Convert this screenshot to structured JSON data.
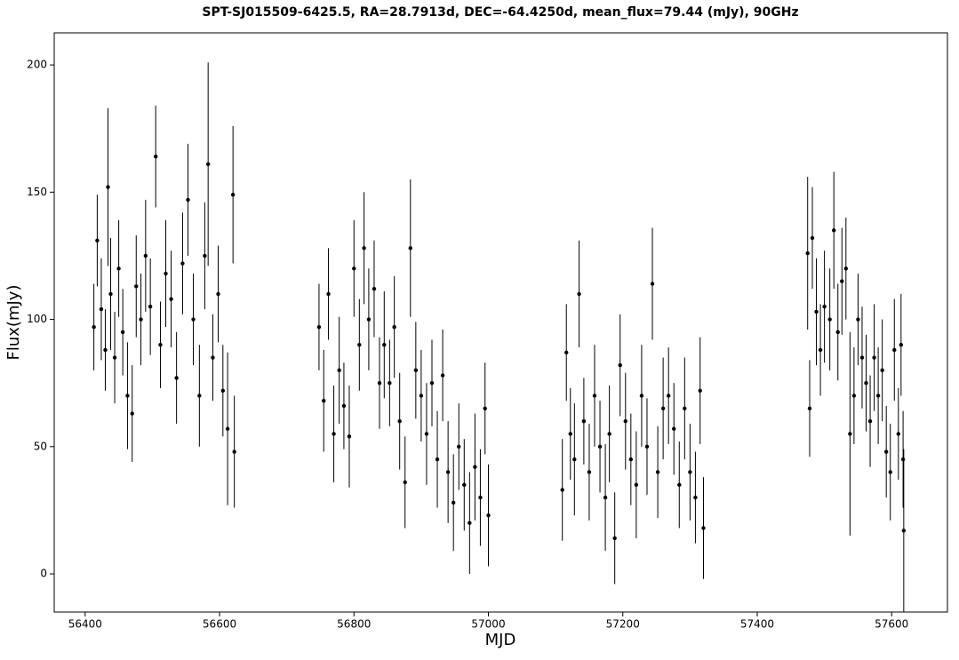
{
  "chart_data": {
    "type": "errorbar",
    "title": "SPT-SJ015509-6425.5, RA=28.7913d, DEC=-64.4250d, mean_flux=79.44 (mJy), 90GHz",
    "x_label": "MJD",
    "y_label": "Flux(mJy)",
    "xlim": [
      56354,
      57683
    ],
    "ylim": [
      -15,
      212.6
    ],
    "xticks": [
      56400,
      56600,
      56800,
      57000,
      57200,
      57400,
      57600
    ],
    "yticks": [
      0,
      50,
      100,
      150,
      200
    ],
    "color": "#000000",
    "x": [
      56413,
      56418,
      56424,
      56430,
      56434,
      56438,
      56444,
      56450,
      56456,
      56463,
      56470,
      56476,
      56483,
      56490,
      56497,
      56505,
      56512,
      56520,
      56528,
      56536,
      56545,
      56553,
      56561,
      56570,
      56578,
      56583,
      56590,
      56598,
      56605,
      56612,
      56620,
      56622,
      56748,
      56755,
      56762,
      56770,
      56778,
      56785,
      56793,
      56800,
      56808,
      56815,
      56822,
      56830,
      56838,
      56845,
      56853,
      56860,
      56868,
      56876,
      56884,
      56892,
      56900,
      56908,
      56916,
      56924,
      56932,
      56940,
      56948,
      56956,
      56964,
      56972,
      56980,
      56988,
      56995,
      57000,
      57110,
      57116,
      57122,
      57128,
      57135,
      57142,
      57150,
      57158,
      57166,
      57174,
      57180,
      57188,
      57196,
      57204,
      57212,
      57220,
      57228,
      57236,
      57244,
      57252,
      57260,
      57268,
      57276,
      57284,
      57292,
      57300,
      57308,
      57315,
      57320,
      57475,
      57478,
      57482,
      57488,
      57494,
      57500,
      57508,
      57514,
      57520,
      57526,
      57532,
      57538,
      57544,
      57550,
      57556,
      57562,
      57568,
      57574,
      57580,
      57586,
      57592,
      57598,
      57604,
      57610,
      57614,
      57617,
      57618
    ],
    "values": [
      97,
      131,
      104,
      88,
      152,
      110,
      85,
      120,
      95,
      70,
      63,
      113,
      100,
      125,
      105,
      164,
      90,
      118,
      108,
      77,
      122,
      147,
      100,
      70,
      125,
      161,
      85,
      110,
      72,
      57,
      149,
      48,
      97,
      68,
      110,
      55,
      80,
      66,
      54,
      120,
      90,
      128,
      100,
      112,
      75,
      90,
      75,
      97,
      60,
      36,
      128,
      80,
      70,
      55,
      75,
      45,
      78,
      40,
      28,
      50,
      35,
      20,
      42,
      30,
      65,
      23,
      33,
      87,
      55,
      45,
      110,
      60,
      40,
      70,
      50,
      30,
      55,
      14,
      82,
      60,
      45,
      35,
      70,
      50,
      114,
      40,
      65,
      70,
      57,
      35,
      65,
      40,
      30,
      72,
      18,
      126,
      65,
      132,
      103,
      88,
      105,
      100,
      135,
      95,
      115,
      120,
      55,
      70,
      100,
      85,
      75,
      60,
      85,
      70,
      80,
      48,
      40,
      88,
      55,
      90,
      45,
      17
    ],
    "errors": [
      17,
      18,
      20,
      16,
      31,
      22,
      18,
      19,
      17,
      21,
      19,
      20,
      18,
      22,
      19,
      20,
      17,
      21,
      19,
      18,
      20,
      22,
      18,
      20,
      21,
      40,
      17,
      19,
      18,
      30,
      27,
      22,
      17,
      20,
      18,
      19,
      21,
      17,
      20,
      19,
      18,
      22,
      20,
      19,
      18,
      21,
      17,
      20,
      19,
      18,
      27,
      19,
      18,
      20,
      17,
      19,
      18,
      20,
      19,
      17,
      18,
      20,
      21,
      19,
      18,
      20,
      20,
      19,
      18,
      22,
      21,
      17,
      19,
      20,
      18,
      21,
      19,
      18,
      20,
      19,
      18,
      21,
      20,
      19,
      22,
      18,
      20,
      19,
      18,
      17,
      20,
      19,
      18,
      21,
      20,
      30,
      19,
      20,
      21,
      18,
      22,
      20,
      23,
      19,
      21,
      20,
      40,
      19,
      18,
      20,
      19,
      18,
      21,
      19,
      20,
      18,
      19,
      20,
      18,
      20,
      19,
      32
    ]
  }
}
